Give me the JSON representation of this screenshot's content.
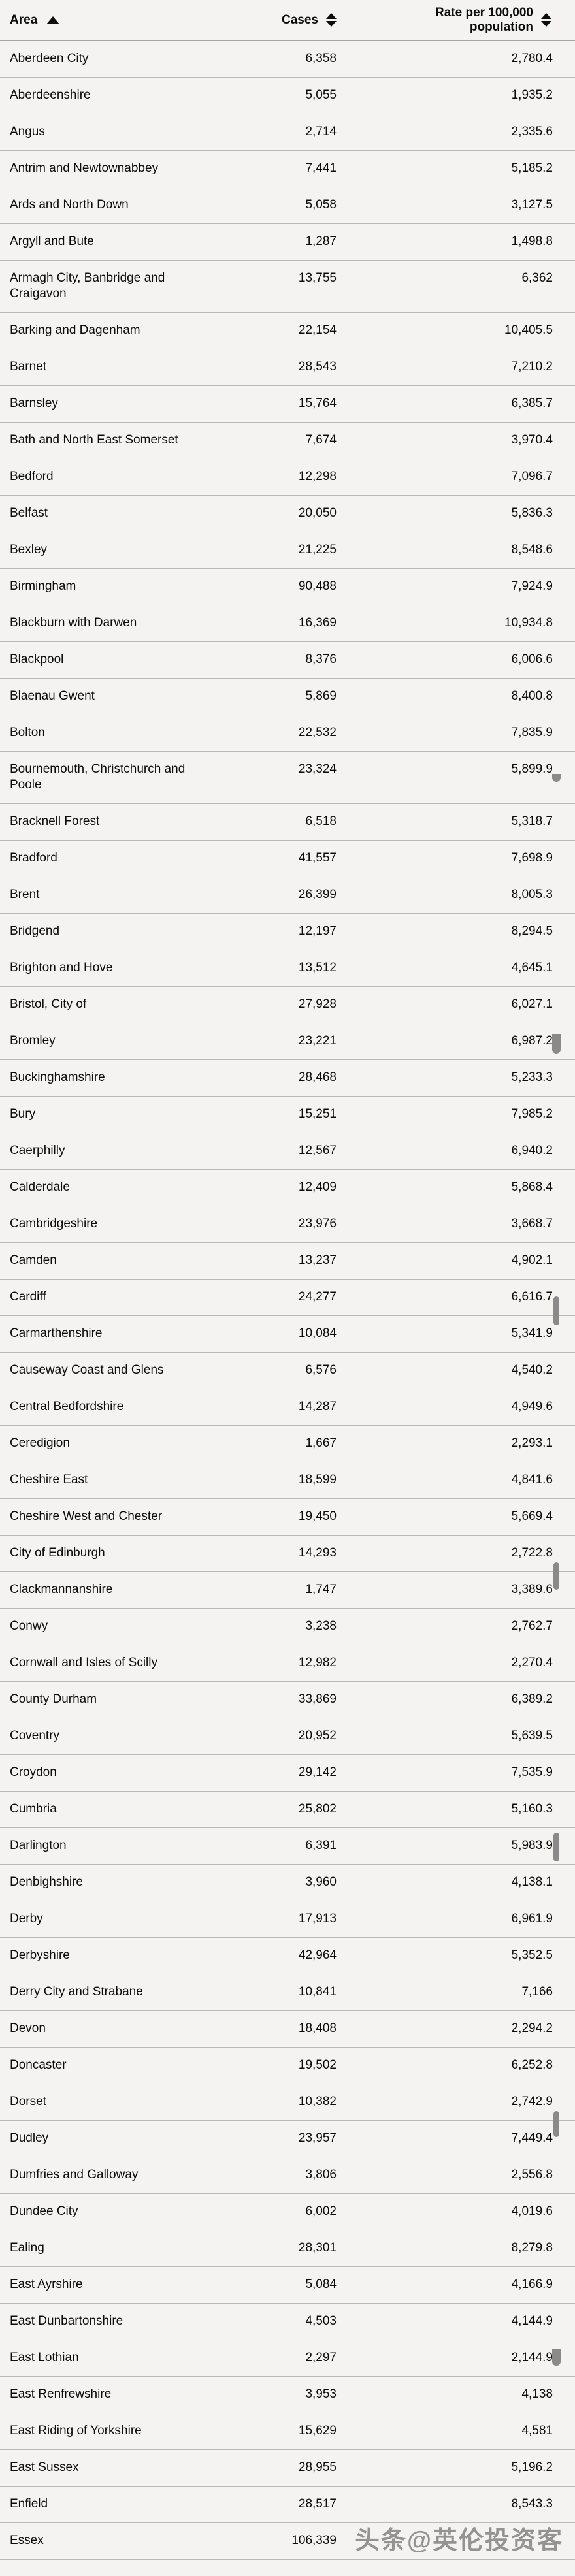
{
  "table": {
    "columns": [
      {
        "label": "Area",
        "sort": "ascending"
      },
      {
        "label": "Cases",
        "sort": "none"
      },
      {
        "label": "Rate per 100,000 population",
        "sort": "none"
      }
    ],
    "rows": [
      [
        "Aberdeen City",
        "6,358",
        "2,780.4"
      ],
      [
        "Aberdeenshire",
        "5,055",
        "1,935.2"
      ],
      [
        "Angus",
        "2,714",
        "2,335.6"
      ],
      [
        "Antrim and Newtownabbey",
        "7,441",
        "5,185.2"
      ],
      [
        "Ards and North Down",
        "5,058",
        "3,127.5"
      ],
      [
        "Argyll and Bute",
        "1,287",
        "1,498.8"
      ],
      [
        "Armagh City, Banbridge and Craigavon",
        "13,755",
        "6,362"
      ],
      [
        "Barking and Dagenham",
        "22,154",
        "10,405.5"
      ],
      [
        "Barnet",
        "28,543",
        "7,210.2"
      ],
      [
        "Barnsley",
        "15,764",
        "6,385.7"
      ],
      [
        "Bath and North East Somerset",
        "7,674",
        "3,970.4"
      ],
      [
        "Bedford",
        "12,298",
        "7,096.7"
      ],
      [
        "Belfast",
        "20,050",
        "5,836.3"
      ],
      [
        "Bexley",
        "21,225",
        "8,548.6"
      ],
      [
        "Birmingham",
        "90,488",
        "7,924.9"
      ],
      [
        "Blackburn with Darwen",
        "16,369",
        "10,934.8"
      ],
      [
        "Blackpool",
        "8,376",
        "6,006.6"
      ],
      [
        "Blaenau Gwent",
        "5,869",
        "8,400.8"
      ],
      [
        "Bolton",
        "22,532",
        "7,835.9"
      ],
      [
        "Bournemouth, Christchurch and Poole",
        "23,324",
        "5,899.9"
      ],
      [
        "Bracknell Forest",
        "6,518",
        "5,318.7"
      ],
      [
        "Bradford",
        "41,557",
        "7,698.9"
      ],
      [
        "Brent",
        "26,399",
        "8,005.3"
      ],
      [
        "Bridgend",
        "12,197",
        "8,294.5"
      ],
      [
        "Brighton and Hove",
        "13,512",
        "4,645.1"
      ],
      [
        "Bristol, City of",
        "27,928",
        "6,027.1"
      ],
      [
        "Bromley",
        "23,221",
        "6,987.2"
      ],
      [
        "Buckinghamshire",
        "28,468",
        "5,233.3"
      ],
      [
        "Bury",
        "15,251",
        "7,985.2"
      ],
      [
        "Caerphilly",
        "12,567",
        "6,940.2"
      ],
      [
        "Calderdale",
        "12,409",
        "5,868.4"
      ],
      [
        "Cambridgeshire",
        "23,976",
        "3,668.7"
      ],
      [
        "Camden",
        "13,237",
        "4,902.1"
      ],
      [
        "Cardiff",
        "24,277",
        "6,616.7"
      ],
      [
        "Carmarthenshire",
        "10,084",
        "5,341.9"
      ],
      [
        "Causeway Coast and Glens",
        "6,576",
        "4,540.2"
      ],
      [
        "Central Bedfordshire",
        "14,287",
        "4,949.6"
      ],
      [
        "Ceredigion",
        "1,667",
        "2,293.1"
      ],
      [
        "Cheshire East",
        "18,599",
        "4,841.6"
      ],
      [
        "Cheshire West and Chester",
        "19,450",
        "5,669.4"
      ],
      [
        "City of Edinburgh",
        "14,293",
        "2,722.8"
      ],
      [
        "Clackmannanshire",
        "1,747",
        "3,389.6"
      ],
      [
        "Conwy",
        "3,238",
        "2,762.7"
      ],
      [
        "Cornwall and Isles of Scilly",
        "12,982",
        "2,270.4"
      ],
      [
        "County Durham",
        "33,869",
        "6,389.2"
      ],
      [
        "Coventry",
        "20,952",
        "5,639.5"
      ],
      [
        "Croydon",
        "29,142",
        "7,535.9"
      ],
      [
        "Cumbria",
        "25,802",
        "5,160.3"
      ],
      [
        "Darlington",
        "6,391",
        "5,983.9"
      ],
      [
        "Denbighshire",
        "3,960",
        "4,138.1"
      ],
      [
        "Derby",
        "17,913",
        "6,961.9"
      ],
      [
        "Derbyshire",
        "42,964",
        "5,352.5"
      ],
      [
        "Derry City and Strabane",
        "10,841",
        "7,166"
      ],
      [
        "Devon",
        "18,408",
        "2,294.2"
      ],
      [
        "Doncaster",
        "19,502",
        "6,252.8"
      ],
      [
        "Dorset",
        "10,382",
        "2,742.9"
      ],
      [
        "Dudley",
        "23,957",
        "7,449.4"
      ],
      [
        "Dumfries and Galloway",
        "3,806",
        "2,556.8"
      ],
      [
        "Dundee City",
        "6,002",
        "4,019.6"
      ],
      [
        "Ealing",
        "28,301",
        "8,279.8"
      ],
      [
        "East Ayrshire",
        "5,084",
        "4,166.9"
      ],
      [
        "East Dunbartonshire",
        "4,503",
        "4,144.9"
      ],
      [
        "East Lothian",
        "2,297",
        "2,144.9"
      ],
      [
        "East Renfrewshire",
        "3,953",
        "4,138"
      ],
      [
        "East Riding of Yorkshire",
        "15,629",
        "4,581"
      ],
      [
        "East Sussex",
        "28,955",
        "5,196.2"
      ],
      [
        "Enfield",
        "28,517",
        "8,543.3"
      ],
      [
        "Essex",
        "106,339",
        ""
      ]
    ]
  },
  "watermark": "头条@英伦投资客",
  "colors": {
    "background": "#f4f3f2",
    "text": "#0b0c0c",
    "row_divider": "#b7babb",
    "header_divider": "#a2a6a8",
    "scrollbar_thumb": "#8a8a8a",
    "watermark": "#6e6e6e"
  }
}
